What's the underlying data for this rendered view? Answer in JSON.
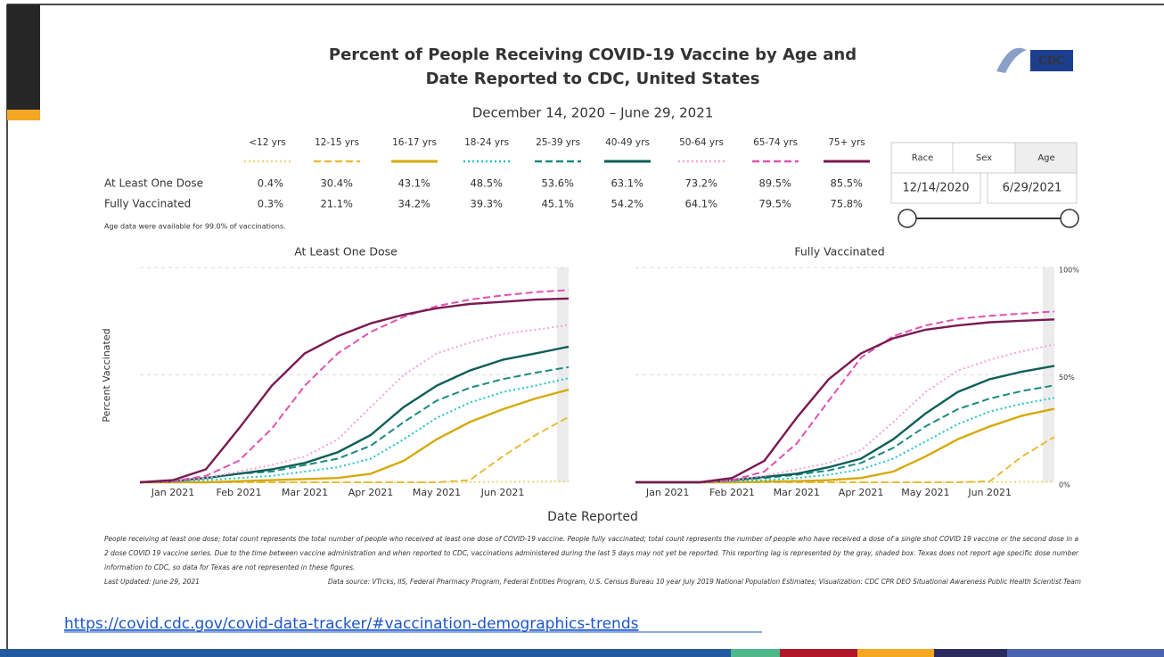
{
  "header": {
    "title_lines": [
      "Percent of People Receiving COVID-19 Vaccine by Age and",
      "Date Reported to CDC, United States"
    ],
    "subtitle": "December 14, 2020 – June 29, 2021",
    "logo": "CDC"
  },
  "table": {
    "rows": [
      {
        "label": "At Least One Dose",
        "values": [
          "0.4%",
          "30.4%",
          "43.1%",
          "48.5%",
          "53.6%",
          "63.1%",
          "73.2%",
          "89.5%",
          "85.5%"
        ]
      },
      {
        "label": "Fully Vaccinated",
        "values": [
          "0.3%",
          "21.1%",
          "34.2%",
          "39.3%",
          "45.1%",
          "54.2%",
          "64.1%",
          "79.5%",
          "75.8%"
        ]
      }
    ],
    "note": "Age data were available for 99.0% of vaccinations."
  },
  "controls": {
    "tabs": [
      "Race",
      "Sex",
      "Age"
    ],
    "dates": [
      "12/14/2020",
      "6/29/2021"
    ]
  },
  "chart_data": [
    {
      "type": "line",
      "title": "At Least One Dose",
      "ylabel": "Percent Vaccinated",
      "xlabel": "Date Reported",
      "x": [
        null,
        "Jan 2021",
        null,
        "Feb 2021",
        null,
        "Mar 2021",
        null,
        "Apr 2021",
        null,
        "May 2021",
        null,
        "Jun 2021",
        null,
        null
      ],
      "ylim": [
        0,
        100
      ],
      "grid": true,
      "series": [
        {
          "name": "<12 yrs",
          "color": "#f0d577",
          "dash": "dotted",
          "values": [
            0,
            0,
            0,
            0,
            0,
            0,
            0,
            0,
            0,
            0,
            0.1,
            0.2,
            0.3,
            0.4
          ]
        },
        {
          "name": "12-15 yrs",
          "color": "#eabb3a",
          "dash": "dashed",
          "values": [
            0,
            0,
            0,
            0,
            0,
            0,
            0,
            0,
            0,
            0,
            1,
            12,
            22,
            30.4
          ]
        },
        {
          "name": "16-17 yrs",
          "color": "#d6a90a",
          "dash": "solid",
          "values": [
            0,
            0,
            0,
            0.5,
            1,
            1.5,
            2,
            4,
            10,
            20,
            28,
            34,
            39,
            43.1
          ]
        },
        {
          "name": "18-24 yrs",
          "color": "#22c2c2",
          "dash": "dotted",
          "values": [
            0,
            0.3,
            1,
            2,
            3,
            5,
            7,
            11,
            20,
            30,
            37,
            42,
            45,
            48.5
          ]
        },
        {
          "name": "25-39 yrs",
          "color": "#1a8a80",
          "dash": "dashed",
          "values": [
            0,
            0.5,
            2,
            4,
            5,
            8,
            11,
            17,
            28,
            38,
            44,
            48,
            51,
            53.6
          ]
        },
        {
          "name": "40-49 yrs",
          "color": "#0e5f58",
          "dash": "solid",
          "values": [
            0,
            0.5,
            2,
            4,
            6,
            9,
            14,
            22,
            35,
            45,
            52,
            57,
            60,
            63.1
          ]
        },
        {
          "name": "50-64 yrs",
          "color": "#f4a3d8",
          "dash": "dotted",
          "values": [
            0,
            0.5,
            2,
            5,
            8,
            12,
            20,
            35,
            50,
            60,
            65,
            69,
            71,
            73.2
          ]
        },
        {
          "name": "65-74 yrs",
          "color": "#e052b2",
          "dash": "dashed",
          "values": [
            0,
            0.5,
            3,
            10,
            25,
            45,
            60,
            70,
            77,
            82,
            85,
            87,
            88.5,
            89.5
          ]
        },
        {
          "name": "75+ yrs",
          "color": "#7a1a52",
          "dash": "solid",
          "values": [
            0,
            1,
            6,
            25,
            45,
            60,
            68,
            74,
            78,
            81,
            83,
            84,
            85,
            85.5
          ]
        }
      ]
    },
    {
      "type": "line",
      "title": "Fully Vaccinated",
      "x": [
        null,
        "Jan 2021",
        null,
        "Feb 2021",
        null,
        "Mar 2021",
        null,
        "Apr 2021",
        null,
        "May 2021",
        null,
        "Jun 2021",
        null,
        null
      ],
      "ylim": [
        0,
        100
      ],
      "yticks": [
        {
          "value": 0,
          "label": "0%"
        },
        {
          "value": 50,
          "label": "50%"
        },
        {
          "value": 100,
          "label": "100%"
        }
      ],
      "grid": true,
      "series": [
        {
          "color": "#f0d577",
          "dash": "dotted",
          "values": [
            0,
            0,
            0,
            0,
            0,
            0,
            0,
            0,
            0,
            0,
            0,
            0.1,
            0.2,
            0.3
          ]
        },
        {
          "color": "#eabb3a",
          "dash": "dashed",
          "values": [
            0,
            0,
            0,
            0,
            0,
            0,
            0,
            0,
            0,
            0,
            0,
            0.5,
            12,
            21.1
          ]
        },
        {
          "color": "#d6a90a",
          "dash": "solid",
          "values": [
            0,
            0,
            0,
            0,
            0.3,
            0.5,
            1,
            2,
            5,
            12,
            20,
            26,
            31,
            34.2
          ]
        },
        {
          "color": "#22c2c2",
          "dash": "dotted",
          "values": [
            0,
            0,
            0,
            0.5,
            1,
            2,
            3.5,
            6,
            11,
            19,
            27,
            33,
            36.5,
            39.3
          ]
        },
        {
          "color": "#1a8a80",
          "dash": "dashed",
          "values": [
            0,
            0,
            0,
            1,
            2,
            3.5,
            5.5,
            9,
            16,
            26,
            34,
            39,
            42.5,
            45.1
          ]
        },
        {
          "color": "#0e5f58",
          "dash": "solid",
          "values": [
            0,
            0,
            0,
            1,
            2.5,
            4,
            7,
            11,
            20,
            32,
            42,
            48,
            51.5,
            54.2
          ]
        },
        {
          "color": "#f4a3d8",
          "dash": "dotted",
          "values": [
            0,
            0,
            0,
            1,
            3,
            6,
            9,
            15,
            28,
            42,
            52,
            57,
            61,
            64.1
          ]
        },
        {
          "color": "#e052b2",
          "dash": "dashed",
          "values": [
            0,
            0,
            0,
            1,
            5,
            18,
            38,
            58,
            68,
            73,
            76,
            77.5,
            78.5,
            79.5
          ]
        },
        {
          "color": "#7a1a52",
          "dash": "solid",
          "values": [
            0,
            0,
            0,
            2,
            10,
            30,
            48,
            60,
            67,
            71,
            73,
            74.5,
            75.2,
            75.8
          ]
        }
      ]
    }
  ],
  "footer": {
    "notes": [
      "People receiving at least one dose; total count represents the total number of people who received at least one dose of COVID-19 vaccine. People fully vaccinated; total count represents the number of people who have received a dose of a single shot COVID 19 vaccine or the second dose in a",
      "2 dose COVID 19 vaccine series.  Due to the time between vaccine administration and when reported to CDC, vaccinations administered during the last 5 days may not yet be reported. This reporting lag is represented by the gray, shaded box. Texas does not report age specific dose number",
      "information to CDC, so data for Texas are not represented in these figures."
    ],
    "updated": "Last Updated: June 29, 2021",
    "source": "Data source: VTrcks, IIS, Federal Pharmacy Program, Federal Entities Program, U.S. Census Bureau 10 year July 2019 National Population Estimates; Visualization: CDC CPR DEO Situational Awareness Public Health Scientist Team",
    "url": "https://covid.cdc.gov/covid-data-tracker/#vaccination-demographics-trends"
  }
}
